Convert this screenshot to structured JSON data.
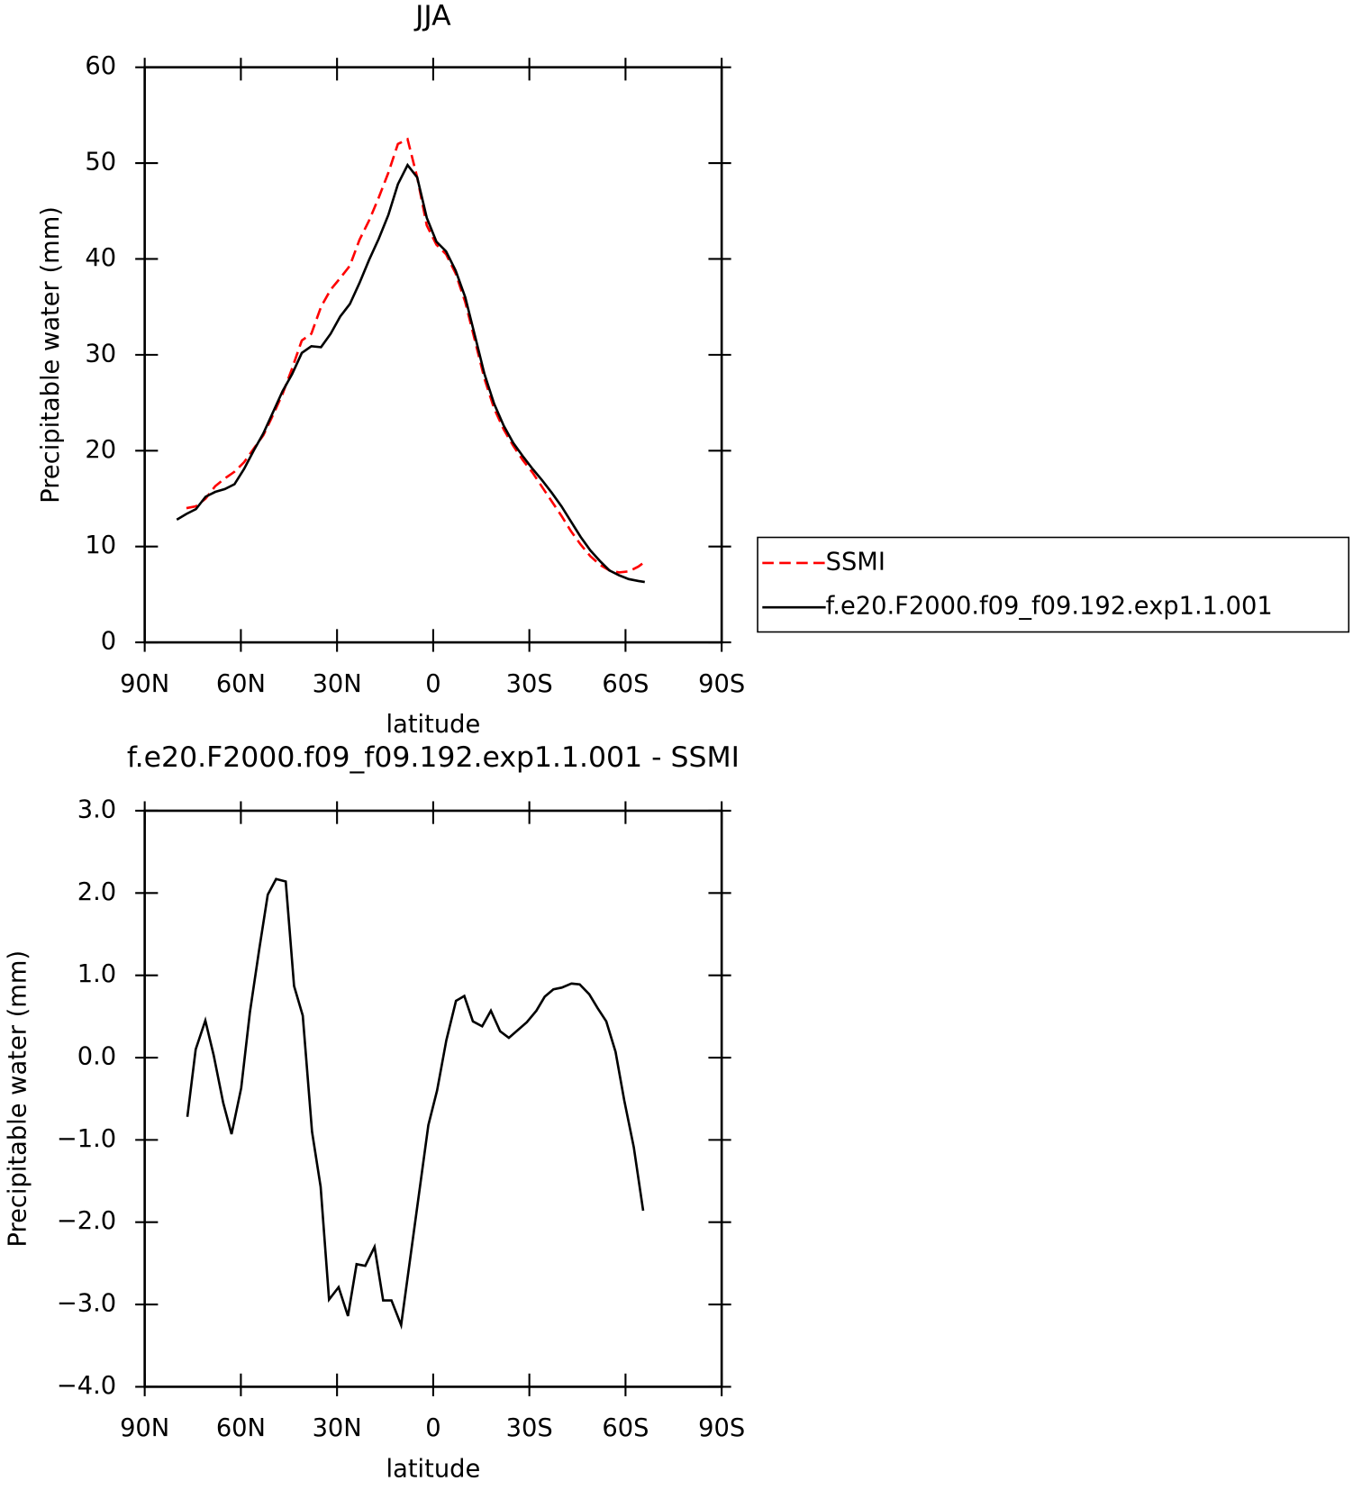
{
  "chart_data": [
    {
      "type": "line",
      "title": "JJA",
      "xlabel": "latitude",
      "ylabel": "Precipitable water (mm)",
      "x": [
        80,
        77,
        74,
        71,
        68,
        65,
        62,
        59,
        56,
        53,
        50,
        47,
        44,
        41,
        38,
        35,
        32,
        29,
        26,
        23,
        20,
        17,
        14,
        11,
        8,
        5,
        2,
        -1,
        -4,
        -7,
        -10,
        -13,
        -16,
        -19,
        -22,
        -25,
        -28,
        -31,
        -34,
        -37,
        -40,
        -43,
        -46,
        -49,
        -52,
        -55,
        -58,
        -61,
        -64,
        -66
      ],
      "series": [
        {
          "name": "SSMI",
          "color": "#ff0000",
          "linestyle": "dashed",
          "values": [
            null,
            14.0,
            14.2,
            15.0,
            16.3,
            17.1,
            17.8,
            18.8,
            20.2,
            21.6,
            23.7,
            25.9,
            28.6,
            31.5,
            32.2,
            35.0,
            36.8,
            38.0,
            39.3,
            42.0,
            44.0,
            46.4,
            49.0,
            52.0,
            52.5,
            48.5,
            43.5,
            41.5,
            40.5,
            38.5,
            35.5,
            31.5,
            27.5,
            24.4,
            22.2,
            20.5,
            19.0,
            17.7,
            16.2,
            14.7,
            13.2,
            11.6,
            10.2,
            9.0,
            8.1,
            7.5,
            7.3,
            7.4,
            7.9,
            8.4
          ]
        },
        {
          "name": "f.e20.F2000.f09_f09.192.exp1.1.001",
          "color": "#000000",
          "linestyle": "solid",
          "values": [
            12.8,
            13.4,
            13.9,
            15.2,
            15.7,
            16.0,
            16.5,
            18.1,
            20.0,
            21.8,
            24.0,
            26.2,
            28.0,
            30.2,
            30.9,
            30.8,
            32.2,
            34.0,
            35.3,
            37.5,
            39.9,
            42.1,
            44.6,
            47.8,
            49.8,
            48.5,
            44.3,
            41.8,
            40.8,
            38.8,
            36.0,
            32.0,
            28.0,
            24.9,
            22.6,
            20.8,
            19.4,
            18.1,
            16.9,
            15.6,
            14.2,
            12.6,
            11.0,
            9.6,
            8.5,
            7.5,
            7.0,
            6.6,
            6.4,
            6.3
          ]
        }
      ],
      "xlim": [
        90,
        -90
      ],
      "xticks": [
        {
          "value": 90,
          "label": "90N"
        },
        {
          "value": 60,
          "label": "60N"
        },
        {
          "value": 30,
          "label": "30N"
        },
        0,
        {
          "value": -30,
          "label": "30S"
        },
        {
          "value": -60,
          "label": "60S"
        },
        {
          "value": -90,
          "label": "90S"
        }
      ],
      "ylim": [
        0,
        60
      ],
      "yticks": [
        0,
        10,
        20,
        30,
        40,
        50,
        60
      ],
      "legend": "outside right",
      "grid": false
    },
    {
      "type": "line",
      "title": "f.e20.F2000.f09_f09.192.exp1.1.001 - SSMI",
      "xlabel": "latitude",
      "ylabel": "Precipitable water (mm)",
      "x": [
        76.7,
        74.1,
        71.1,
        68.5,
        65.5,
        62.9,
        59.9,
        57.2,
        54.3,
        51.6,
        49.0,
        46.0,
        43.4,
        40.7,
        37.8,
        35.1,
        32.5,
        29.5,
        26.6,
        23.9,
        21.2,
        18.3,
        15.6,
        13.0,
        10.0,
        1.5,
        -1.2,
        -4.1,
        -7.1,
        -9.7,
        -12.4,
        -15.3,
        -18.0,
        -20.9,
        -23.6,
        -29.2,
        -32.2,
        -34.8,
        -37.5,
        -40.1,
        -43.1,
        -45.7,
        -48.7,
        -51.3,
        -54.0,
        -56.9,
        -59.6,
        -62.6,
        -65.5
      ],
      "series": [
        {
          "name": null,
          "color": "#000000",
          "linestyle": "solid",
          "values": [
            -0.72,
            0.1,
            0.45,
            0.03,
            -0.55,
            -0.93,
            -0.37,
            0.55,
            1.31,
            1.98,
            2.17,
            2.14,
            0.87,
            0.51,
            -0.9,
            -1.57,
            -2.94,
            -2.79,
            -3.14,
            -2.51,
            -2.53,
            -2.3,
            -2.95,
            -2.95,
            -3.25,
            -0.82,
            -0.4,
            0.21,
            0.69,
            0.75,
            0.44,
            0.38,
            0.57,
            0.32,
            0.24,
            0.43,
            0.57,
            0.74,
            0.83,
            0.85,
            0.9,
            0.89,
            0.77,
            0.6,
            0.44,
            0.07,
            -0.52,
            -1.09,
            -1.86
          ]
        }
      ],
      "xlim": [
        90,
        -90
      ],
      "xticks": [
        {
          "value": 90,
          "label": "90N"
        },
        {
          "value": 60,
          "label": "60N"
        },
        {
          "value": 30,
          "label": "30N"
        },
        0,
        {
          "value": -30,
          "label": "30S"
        },
        {
          "value": -60,
          "label": "60S"
        },
        {
          "value": -90,
          "label": "90S"
        }
      ],
      "ylim": [
        -4,
        3
      ],
      "yticks": [
        {
          "value": -4,
          "label": "−4.0"
        },
        {
          "value": -3,
          "label": "−3.0"
        },
        {
          "value": -2,
          "label": "−2.0"
        },
        {
          "value": -1,
          "label": "−1.0"
        },
        {
          "value": 0,
          "label": "0.0"
        },
        {
          "value": 1,
          "label": "1.0"
        },
        {
          "value": 2,
          "label": "2.0"
        },
        {
          "value": 3,
          "label": "3.0"
        }
      ],
      "grid": false
    }
  ]
}
